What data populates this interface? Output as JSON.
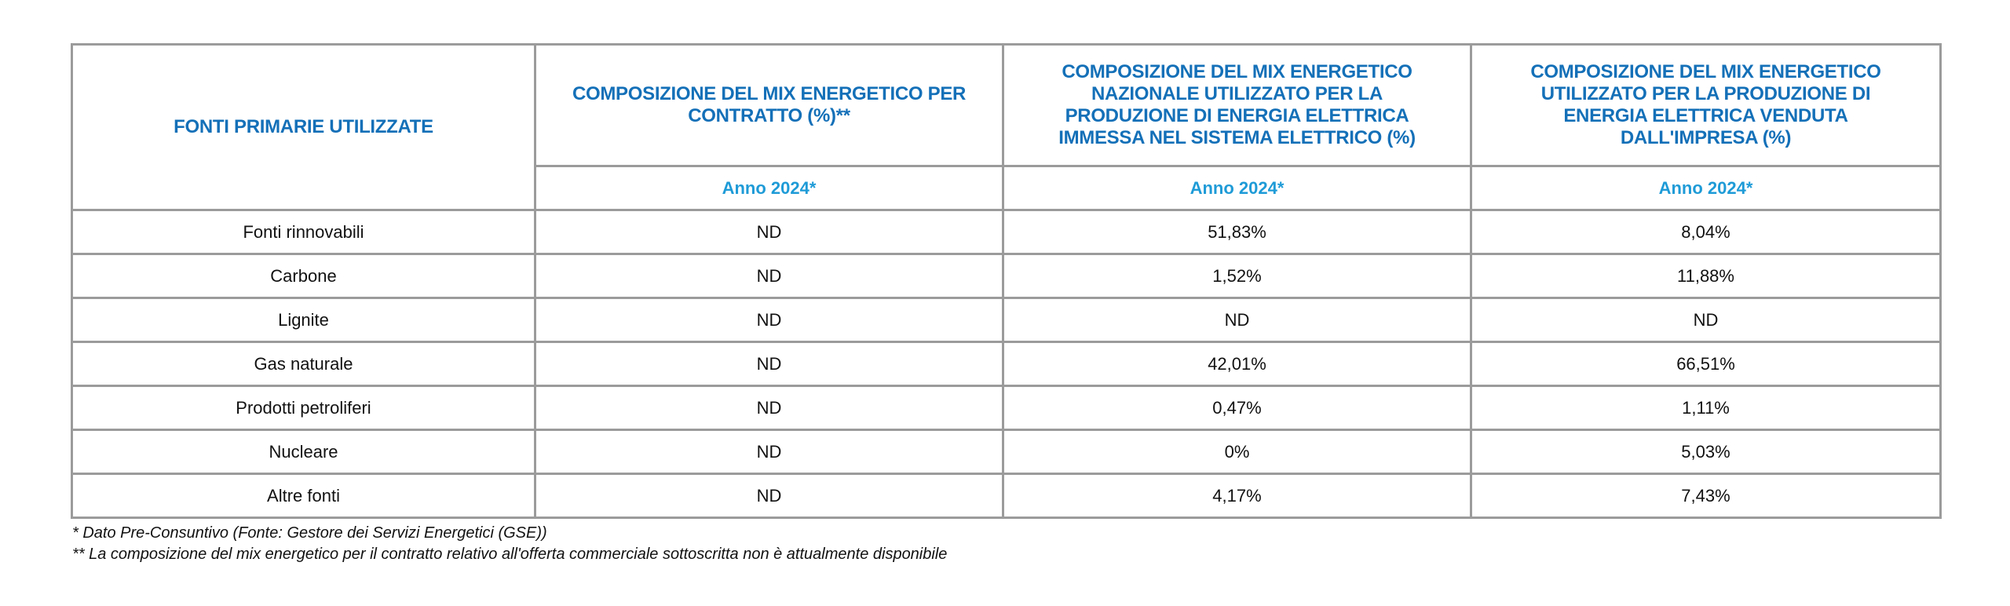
{
  "table": {
    "headers": {
      "col0": "FONTI PRIMARIE UTILIZZATE",
      "col1_lines": [
        "COMPOSIZIONE DEL MIX ENERGETICO PER",
        "CONTRATTO (%)**"
      ],
      "col2_lines": [
        "COMPOSIZIONE DEL MIX ENERGETICO",
        "NAZIONALE UTILIZZATO PER LA",
        "PRODUZIONE DI ENERGIA ELETTRICA",
        "IMMESSA NEL SISTEMA ELETTRICO (%)"
      ],
      "col3_lines": [
        "COMPOSIZIONE DEL MIX ENERGETICO",
        "UTILIZZATO PER LA PRODUZIONE DI",
        "ENERGIA ELETTRICA VENDUTA",
        "DALL'IMPRESA (%)"
      ],
      "year_col1": "Anno 2024*",
      "year_col2": "Anno 2024*",
      "year_col3": "Anno 2024*"
    },
    "rows": [
      {
        "source": "Fonti rinnovabili",
        "contratto": "ND",
        "nazionale": "51,83%",
        "impresa": "8,04%"
      },
      {
        "source": "Carbone",
        "contratto": "ND",
        "nazionale": "1,52%",
        "impresa": "11,88%"
      },
      {
        "source": "Lignite",
        "contratto": "ND",
        "nazionale": "ND",
        "impresa": "ND"
      },
      {
        "source": "Gas naturale",
        "contratto": "ND",
        "nazionale": "42,01%",
        "impresa": "66,51%"
      },
      {
        "source": "Prodotti petroliferi",
        "contratto": "ND",
        "nazionale": "0,47%",
        "impresa": "1,11%"
      },
      {
        "source": "Nucleare",
        "contratto": "ND",
        "nazionale": "0%",
        "impresa": "5,03%"
      },
      {
        "source": "Altre fonti",
        "contratto": "ND",
        "nazionale": "4,17%",
        "impresa": "7,43%"
      }
    ]
  },
  "notes": {
    "note1": "* Dato Pre-Consuntivo (Fonte: Gestore dei Servizi Energetici (GSE))",
    "note2": "** La composizione del mix energetico per il contratto relativo all'offerta commerciale sottoscritta non è attualmente disponibile"
  },
  "colors": {
    "header_text": "#1470b8",
    "year_text": "#1e9bd7",
    "border": "#9b9b9b"
  }
}
